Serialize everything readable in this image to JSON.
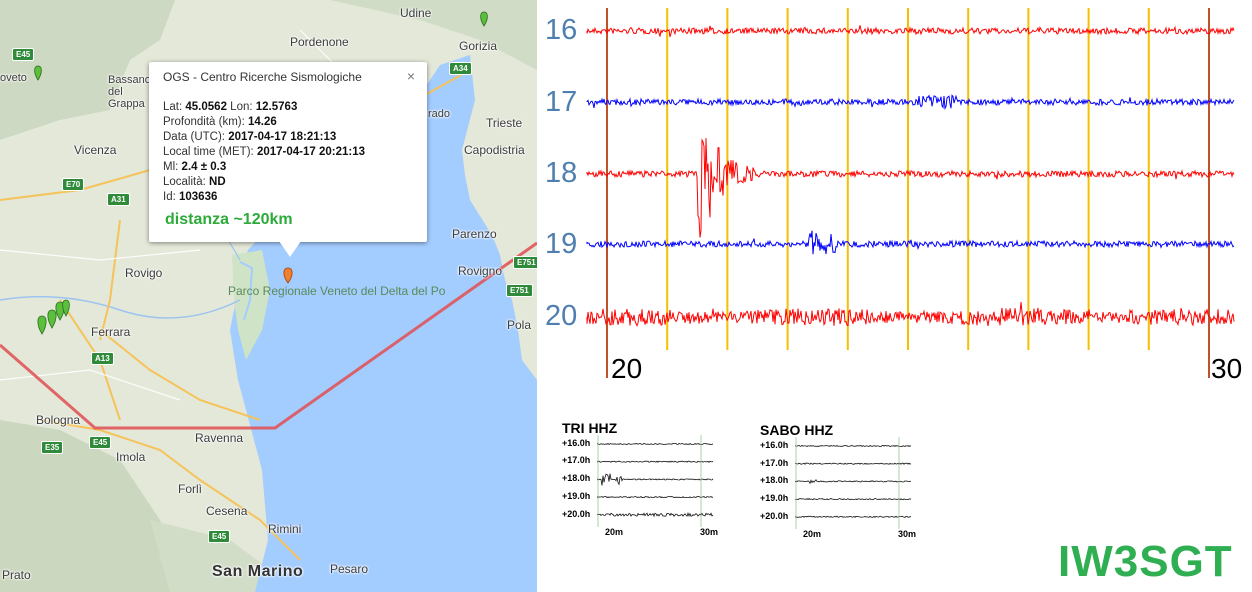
{
  "map": {
    "places": [
      "Udine",
      "Pordenone",
      "Gorizia",
      "Trieste",
      "Capodistria",
      "Vicenza",
      "Rovigo",
      "Ferrara",
      "Bologna",
      "Ravenna",
      "Imola",
      "Forlì",
      "Cesena",
      "Rimini",
      "San Marino",
      "Pesaro",
      "Parenzo",
      "Rovigno",
      "Pola",
      "Bassano del Grappa",
      "Prato",
      "oveto",
      "rado"
    ],
    "park_label": "Parco Regionale Veneto del Delta del Po",
    "roads": [
      "E45",
      "A34",
      "E70",
      "A31",
      "A13",
      "E35",
      "E45",
      "E45",
      "E751",
      "E751"
    ]
  },
  "popup": {
    "title": "OGS - Centro Ricerche Sismologiche",
    "close": "×",
    "lat_label": "Lat:",
    "lat": "45.0562",
    "lon_label": "Lon:",
    "lon": "12.5763",
    "depth_label": "Profondità (km):",
    "depth": "14.26",
    "date_label": "Data (UTC):",
    "date": "2017-04-17 18:21:13",
    "local_label": "Local time (MET):",
    "local": "2017-04-17 20:21:13",
    "ml_label": "Ml:",
    "ml": "2.4 ± 0.3",
    "locality_label": "Località:",
    "locality": "ND",
    "id_label": "Id:",
    "id": "103636",
    "distance": "distanza ~120km"
  },
  "seismogram": {
    "hours": [
      "16",
      "17",
      "18",
      "19",
      "20"
    ],
    "trace_colors": [
      "#ff0000",
      "#0000ff",
      "#ff0000",
      "#0000ff",
      "#ff0000"
    ],
    "minute_start": "20",
    "minute_end": "30",
    "minute_line_color": "#f5c000",
    "edge_line_color": "#c0522a"
  },
  "helicorders": [
    {
      "title": "TRI HHZ",
      "rows": [
        "+16.0h",
        "+17.0h",
        "+18.0h",
        "+19.0h",
        "+20.0h"
      ],
      "x_start": "20m",
      "x_end": "30m"
    },
    {
      "title": "SABO HHZ",
      "rows": [
        "+16.0h",
        "+17.0h",
        "+18.0h",
        "+19.0h",
        "+20.0h"
      ],
      "x_start": "20m",
      "x_end": "30m"
    }
  ],
  "callsign": "IW3SGT",
  "colors": {
    "callsign": "#2fae52",
    "hour_label": "#4f7fb0",
    "distance": "#2daa3a",
    "sea": "#a3ccff",
    "route": "#e0555a"
  }
}
